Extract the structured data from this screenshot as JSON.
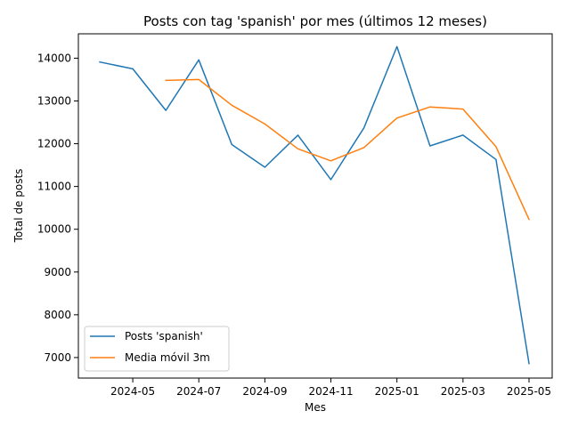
{
  "chart_data": {
    "type": "line",
    "title": "Posts con tag 'spanish' por mes (últimos 12 meses)",
    "xlabel": "Mes",
    "ylabel": "Total de posts",
    "x": [
      "2024-04",
      "2024-05",
      "2024-06",
      "2024-07",
      "2024-08",
      "2024-09",
      "2024-10",
      "2024-11",
      "2024-12",
      "2025-01",
      "2025-02",
      "2025-03",
      "2025-04",
      "2025-05"
    ],
    "x_ticks": [
      "2024-05",
      "2024-07",
      "2024-09",
      "2024-11",
      "2025-01",
      "2025-03",
      "2025-05"
    ],
    "y_ticks": [
      7000,
      8000,
      9000,
      10000,
      11000,
      12000,
      13000,
      14000
    ],
    "ylim": [
      6520,
      14570
    ],
    "grid": false,
    "legend_position": "lower-left",
    "series": [
      {
        "name": "Posts 'spanish'",
        "color": "#1f77b4",
        "values": [
          13910,
          13750,
          12780,
          13960,
          11980,
          11450,
          12200,
          11160,
          12370,
          14270,
          11950,
          12200,
          11630,
          6860
        ]
      },
      {
        "name": "Media móvil 3m",
        "color": "#ff7f0e",
        "values": [
          null,
          null,
          13480,
          13500,
          12900,
          12460,
          11880,
          11600,
          11910,
          12600,
          12860,
          12810,
          11930,
          10230
        ]
      }
    ]
  }
}
